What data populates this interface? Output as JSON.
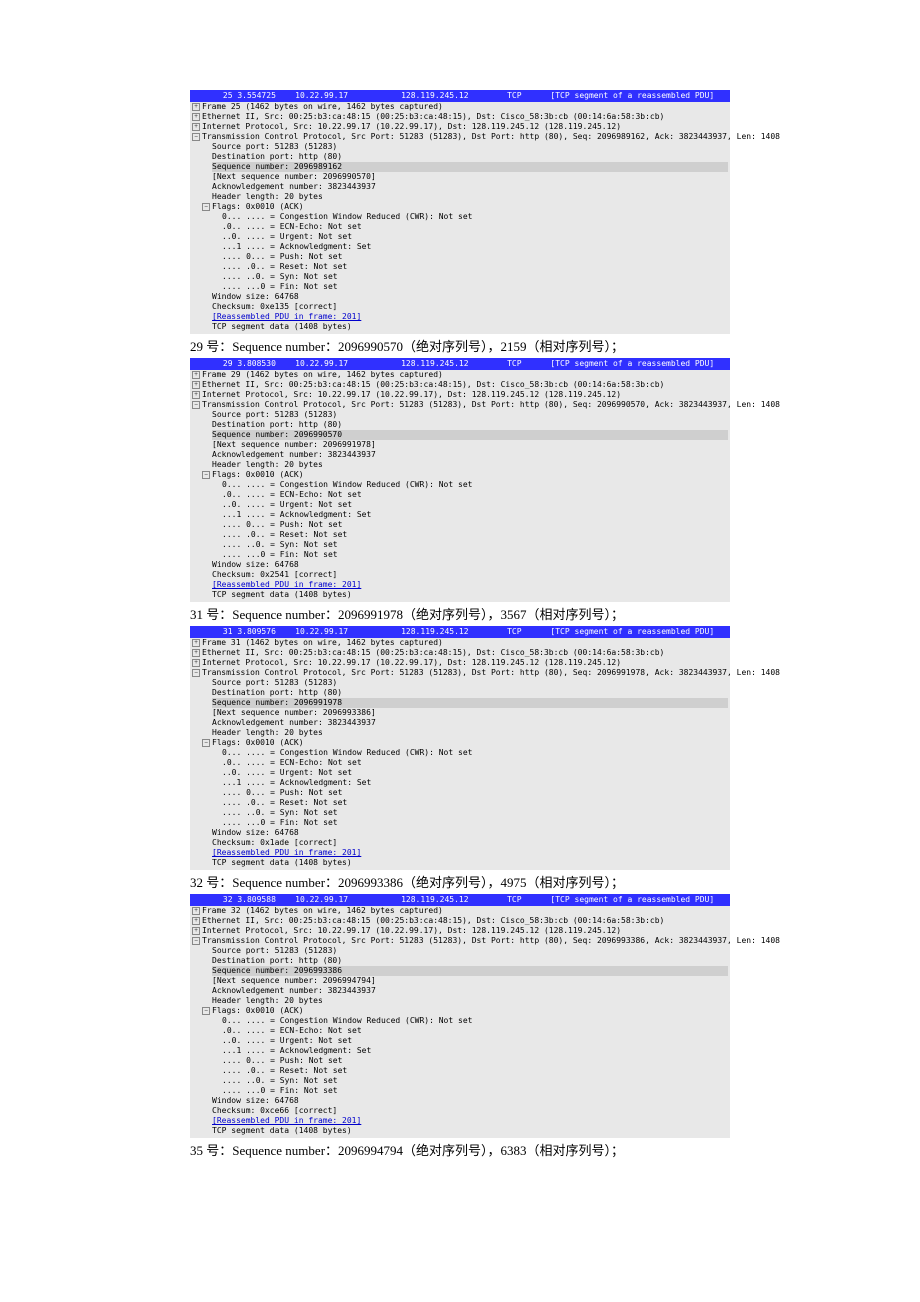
{
  "colors": {
    "header_bg": "#3030ff",
    "header_fg": "#ffffff",
    "body_bg": "#e8e8e8",
    "body_fg": "#000000",
    "highlight_bg": "#cfcfcf",
    "link_color": "#0000cc"
  },
  "packets": [
    {
      "header": "      25 3.554725    10.22.99.17           128.119.245.12        TCP      [TCP segment of a reassembled PDU]",
      "caption_before": "",
      "frame": "Frame 25 (1462 bytes on wire, 1462 bytes captured)",
      "eth": "Ethernet II, Src: 00:25:b3:ca:48:15 (00:25:b3:ca:48:15), Dst: Cisco_58:3b:cb (00:14:6a:58:3b:cb)",
      "ip": "Internet Protocol, Src: 10.22.99.17 (10.22.99.17), Dst: 128.119.245.12 (128.119.245.12)",
      "tcp": "Transmission Control Protocol, Src Port: 51283 (51283), Dst Port: http (80), Seq: 2096989162, Ack: 3823443937, Len: 1408",
      "src_port": "Source port: 51283 (51283)",
      "dst_port": "Destination port: http (80)",
      "seq": "Sequence number: 2096989162",
      "next_seq": "[Next sequence number: 2096990570]",
      "ack": "Acknowledgement number: 3823443937",
      "hdr_len": "Header length: 20 bytes",
      "flags_hdr": "Flags: 0x0010 (ACK)",
      "flags": [
        "0... .... = Congestion Window Reduced (CWR): Not set",
        ".0.. .... = ECN-Echo: Not set",
        "..0. .... = Urgent: Not set",
        "...1 .... = Acknowledgment: Set",
        ".... 0... = Push: Not set",
        ".... .0.. = Reset: Not set",
        ".... ..0. = Syn: Not set",
        ".... ...0 = Fin: Not set"
      ],
      "win": "Window size: 64768",
      "csum": "Checksum: 0xe135 [correct]",
      "reasm": "[Reassembled PDU in frame: 201]",
      "seg": "TCP segment data (1408 bytes)"
    },
    {
      "caption_before": "29 号：Sequence number：2096990570（绝对序列号），2159（相对序列号）；",
      "header": "      29 3.808530    10.22.99.17           128.119.245.12        TCP      [TCP segment of a reassembled PDU]",
      "frame": "Frame 29 (1462 bytes on wire, 1462 bytes captured)",
      "eth": "Ethernet II, Src: 00:25:b3:ca:48:15 (00:25:b3:ca:48:15), Dst: Cisco_58:3b:cb (00:14:6a:58:3b:cb)",
      "ip": "Internet Protocol, Src: 10.22.99.17 (10.22.99.17), Dst: 128.119.245.12 (128.119.245.12)",
      "tcp": "Transmission Control Protocol, Src Port: 51283 (51283), Dst Port: http (80), Seq: 2096990570, Ack: 3823443937, Len: 1408",
      "src_port": "Source port: 51283 (51283)",
      "dst_port": "Destination port: http (80)",
      "seq": "Sequence number: 2096990570",
      "next_seq": "[Next sequence number: 2096991978]",
      "ack": "Acknowledgement number: 3823443937",
      "hdr_len": "Header length: 20 bytes",
      "flags_hdr": "Flags: 0x0010 (ACK)",
      "flags": [
        "0... .... = Congestion Window Reduced (CWR): Not set",
        ".0.. .... = ECN-Echo: Not set",
        "..0. .... = Urgent: Not set",
        "...1 .... = Acknowledgment: Set",
        ".... 0... = Push: Not set",
        ".... .0.. = Reset: Not set",
        ".... ..0. = Syn: Not set",
        ".... ...0 = Fin: Not set"
      ],
      "win": "Window size: 64768",
      "csum": "Checksum: 0x2541 [correct]",
      "reasm": "[Reassembled PDU in frame: 201]",
      "seg": "TCP segment data (1408 bytes)"
    },
    {
      "caption_before": "31 号：Sequence number：2096991978（绝对序列号），3567（相对序列号）；",
      "header": "      31 3.809576    10.22.99.17           128.119.245.12        TCP      [TCP segment of a reassembled PDU]",
      "frame": "Frame 31 (1462 bytes on wire, 1462 bytes captured)",
      "eth": "Ethernet II, Src: 00:25:b3:ca:48:15 (00:25:b3:ca:48:15), Dst: Cisco_58:3b:cb (00:14:6a:58:3b:cb)",
      "ip": "Internet Protocol, Src: 10.22.99.17 (10.22.99.17), Dst: 128.119.245.12 (128.119.245.12)",
      "tcp": "Transmission Control Protocol, Src Port: 51283 (51283), Dst Port: http (80), Seq: 2096991978, Ack: 3823443937, Len: 1408",
      "src_port": "Source port: 51283 (51283)",
      "dst_port": "Destination port: http (80)",
      "seq": "Sequence number: 2096991978",
      "next_seq": "[Next sequence number: 2096993386]",
      "ack": "Acknowledgement number: 3823443937",
      "hdr_len": "Header length: 20 bytes",
      "flags_hdr": "Flags: 0x0010 (ACK)",
      "flags": [
        "0... .... = Congestion Window Reduced (CWR): Not set",
        ".0.. .... = ECN-Echo: Not set",
        "..0. .... = Urgent: Not set",
        "...1 .... = Acknowledgment: Set",
        ".... 0... = Push: Not set",
        ".... .0.. = Reset: Not set",
        ".... ..0. = Syn: Not set",
        ".... ...0 = Fin: Not set"
      ],
      "win": "Window size: 64768",
      "csum": "Checksum: 0x1ade [correct]",
      "reasm": "[Reassembled PDU in frame: 201]",
      "seg": "TCP segment data (1408 bytes)"
    },
    {
      "caption_before": "32 号：Sequence number：2096993386（绝对序列号），4975（相对序列号）；",
      "header": "      32 3.809588    10.22.99.17           128.119.245.12        TCP      [TCP segment of a reassembled PDU]",
      "frame": "Frame 32 (1462 bytes on wire, 1462 bytes captured)",
      "eth": "Ethernet II, Src: 00:25:b3:ca:48:15 (00:25:b3:ca:48:15), Dst: Cisco_58:3b:cb (00:14:6a:58:3b:cb)",
      "ip": "Internet Protocol, Src: 10.22.99.17 (10.22.99.17), Dst: 128.119.245.12 (128.119.245.12)",
      "tcp": "Transmission Control Protocol, Src Port: 51283 (51283), Dst Port: http (80), Seq: 2096993386, Ack: 3823443937, Len: 1408",
      "src_port": "Source port: 51283 (51283)",
      "dst_port": "Destination port: http (80)",
      "seq": "Sequence number: 2096993386",
      "next_seq": "[Next sequence number: 2096994794]",
      "ack": "Acknowledgement number: 3823443937",
      "hdr_len": "Header length: 20 bytes",
      "flags_hdr": "Flags: 0x0010 (ACK)",
      "flags": [
        "0... .... = Congestion Window Reduced (CWR): Not set",
        ".0.. .... = ECN-Echo: Not set",
        "..0. .... = Urgent: Not set",
        "...1 .... = Acknowledgment: Set",
        ".... 0... = Push: Not set",
        ".... .0.. = Reset: Not set",
        ".... ..0. = Syn: Not set",
        ".... ...0 = Fin: Not set"
      ],
      "win": "Window size: 64768",
      "csum": "Checksum: 0xce66 [correct]",
      "reasm": "[Reassembled PDU in frame: 201]",
      "seg": "TCP segment data (1408 bytes)"
    }
  ],
  "caption_after": "35 号：Sequence number：2096994794（绝对序列号），6383（相对序列号）；"
}
